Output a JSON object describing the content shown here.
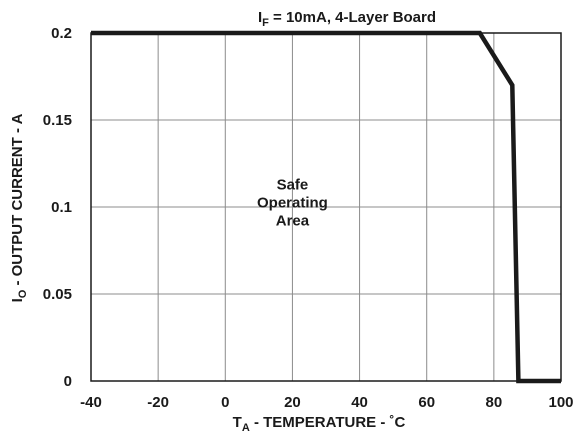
{
  "chart_data": {
    "type": "line",
    "title": {
      "main": "I",
      "sub": "F",
      "rest": " = 10mA, 4-Layer Board"
    },
    "xlabel": {
      "main": "T",
      "sub": "A",
      "rest": " - TEMPERATURE - ˚C"
    },
    "ylabel": {
      "main": "I",
      "sub": "O",
      "rest": " - OUTPUT CURRENT - A"
    },
    "xlim": [
      -40,
      100
    ],
    "ylim": [
      0,
      0.2
    ],
    "x_ticks": [
      -40,
      -20,
      0,
      20,
      40,
      60,
      80,
      100
    ],
    "y_ticks": [
      0,
      0.05,
      0.1,
      0.15,
      0.2
    ],
    "y_tick_labels": [
      "0",
      "0.05",
      "0.1",
      "0.15",
      "0.2"
    ],
    "grid": true,
    "series": [
      {
        "x": [
          -40,
          75.8,
          85.5,
          87.3,
          100
        ],
        "y": [
          0.2,
          0.2,
          0.17,
          0,
          0
        ]
      }
    ],
    "annotations": [
      {
        "lines": [
          "Safe",
          "Operating",
          "Area"
        ],
        "x": 20,
        "y": 0.11
      }
    ],
    "colors": {
      "line": "#1a1a1a",
      "grid": "#8c8c8c",
      "frame": "#1a1a1a"
    }
  }
}
